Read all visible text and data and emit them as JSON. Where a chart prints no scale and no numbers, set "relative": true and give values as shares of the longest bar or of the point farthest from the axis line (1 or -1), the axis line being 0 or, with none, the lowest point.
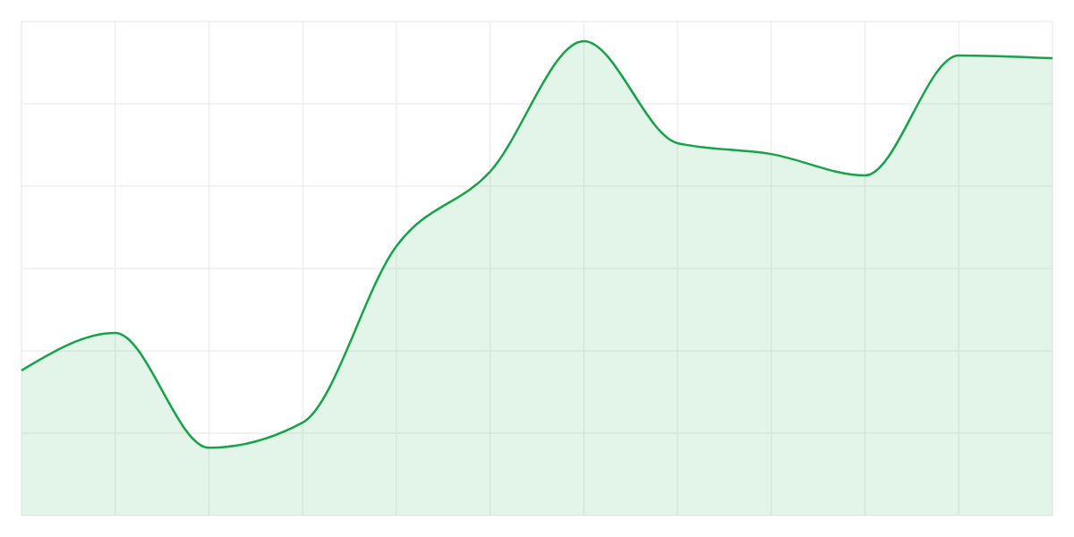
{
  "chart_data": {
    "type": "area",
    "relative": true,
    "grid": true,
    "categories": [
      null,
      null,
      null,
      null,
      null,
      null,
      null,
      null,
      null,
      null,
      null,
      null
    ],
    "series": [
      {
        "color": "#16a34a",
        "values": [
          0.306,
          0.385,
          0.143,
          0.196,
          0.568,
          0.725,
          1,
          0.785,
          0.762,
          0.717,
          0.97,
          0.964
        ]
      }
    ]
  }
}
